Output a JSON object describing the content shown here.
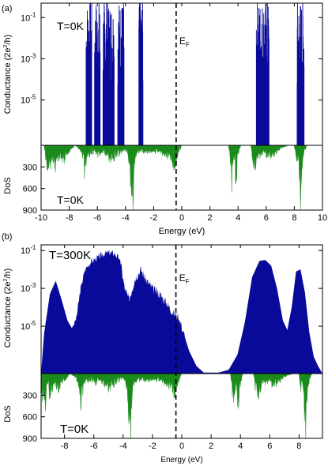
{
  "colors": {
    "conductance_fill": "#0a0a9a",
    "dos_fill": "#1a8a1a",
    "axis": "#000000",
    "fermi_line": "#000000"
  },
  "chart_data": [
    {
      "panel_label": "(a)",
      "type": "area",
      "conductance": {
        "ylabel": "Conductance (2e²/h)",
        "ylabel_main": "Conductance (2e",
        "ylabel_sup": "2",
        "ylabel_end": "/h)",
        "scale": "log",
        "yticks": [
          {
            "mant": "10",
            "exp": "-1",
            "value": 0.1
          },
          {
            "mant": "10",
            "exp": "-3",
            "value": 0.001
          },
          {
            "mant": "10",
            "exp": "-5",
            "value": 1e-05
          }
        ],
        "ylim_log10": [
          -7.2,
          -0.3
        ],
        "temperature": "T=0K",
        "fermi_label_main": "E",
        "fermi_label_sub": "F",
        "fermi_energy_ev": -0.4,
        "bands_ev": [
          [
            -6.8,
            -6.4
          ],
          [
            -6.2,
            -5.8
          ],
          [
            -5.6,
            -4.8
          ],
          [
            -4.55,
            -4.1
          ],
          [
            -3.05,
            -2.75
          ],
          [
            5.3,
            6.2
          ],
          [
            8.2,
            8.7
          ]
        ]
      },
      "dos": {
        "ylabel": "DoS",
        "yticks": [
          300,
          600,
          900
        ],
        "ylim": [
          0,
          900
        ],
        "temperature": "T=0K"
      },
      "xlabel": "Energy (eV)",
      "xlim": [
        -10,
        10
      ],
      "xticks": [
        "-10",
        "-8",
        "-6",
        "-4",
        "-2",
        "0",
        "2",
        "4",
        "6",
        "8",
        "10"
      ]
    },
    {
      "panel_label": "(b)",
      "type": "area",
      "conductance": {
        "ylabel_main": "Conductance (2e",
        "ylabel_sup": "2",
        "ylabel_end": "/h)",
        "scale": "log",
        "yticks": [
          {
            "mant": "10",
            "exp": "-1",
            "value": 0.1
          },
          {
            "mant": "10",
            "exp": "-3",
            "value": 0.001
          },
          {
            "mant": "10",
            "exp": "-5",
            "value": 1e-05
          }
        ],
        "ylim_log10": [
          -7.5,
          -0.7
        ],
        "temperature": "T=300K",
        "fermi_label_main": "E",
        "fermi_label_sub": "F",
        "fermi_energy_ev": -0.4,
        "profile_ev_log10": [
          [
            -9.6,
            -7.5
          ],
          [
            -9.4,
            -5.4
          ],
          [
            -9.0,
            -3.3
          ],
          [
            -8.6,
            -2.6
          ],
          [
            -8.2,
            -3.6
          ],
          [
            -7.8,
            -4.7
          ],
          [
            -7.5,
            -5.1
          ],
          [
            -7.2,
            -4.6
          ],
          [
            -6.9,
            -3.0
          ],
          [
            -6.6,
            -2.0
          ],
          [
            -6.2,
            -1.6
          ],
          [
            -5.8,
            -1.4
          ],
          [
            -5.4,
            -1.2
          ],
          [
            -5.0,
            -1.1
          ],
          [
            -4.6,
            -1.15
          ],
          [
            -4.2,
            -1.5
          ],
          [
            -3.9,
            -3.0
          ],
          [
            -3.6,
            -3.6
          ],
          [
            -3.2,
            -2.5
          ],
          [
            -2.8,
            -2.0
          ],
          [
            -2.4,
            -2.6
          ],
          [
            -2.0,
            -3.0
          ],
          [
            -1.5,
            -3.3
          ],
          [
            -1.0,
            -3.8
          ],
          [
            -0.6,
            -4.3
          ],
          [
            -0.2,
            -4.5
          ],
          [
            0.1,
            -5.3
          ],
          [
            0.5,
            -6.3
          ],
          [
            1.0,
            -7.1
          ],
          [
            1.5,
            -7.45
          ],
          [
            2.5,
            -7.45
          ],
          [
            3.2,
            -7.3
          ],
          [
            3.8,
            -6.5
          ],
          [
            4.3,
            -4.8
          ],
          [
            4.8,
            -2.4
          ],
          [
            5.3,
            -1.55
          ],
          [
            5.7,
            -1.5
          ],
          [
            6.1,
            -1.8
          ],
          [
            6.5,
            -3.0
          ],
          [
            6.9,
            -4.7
          ],
          [
            7.2,
            -5.2
          ],
          [
            7.5,
            -4.0
          ],
          [
            7.8,
            -2.1
          ],
          [
            8.1,
            -2.0
          ],
          [
            8.4,
            -3.2
          ],
          [
            8.7,
            -5.3
          ],
          [
            9.0,
            -6.6
          ],
          [
            9.3,
            -7.1
          ],
          [
            9.6,
            -7.5
          ]
        ]
      },
      "dos": {
        "ylabel": "DoS",
        "yticks": [
          300,
          600,
          900
        ],
        "ylim": [
          0,
          900
        ],
        "temperature": "T=0K"
      },
      "xlabel": "Energy (eV)",
      "xlim": [
        -9.6,
        9.6
      ],
      "xticks": [
        "-8",
        "-6",
        "-4",
        "-2",
        "0",
        "2",
        "4",
        "6",
        "8"
      ]
    }
  ],
  "dos_profile_ev": [
    [
      -9.8,
      0
    ],
    [
      -9.7,
      120
    ],
    [
      -9.55,
      320
    ],
    [
      -9.4,
      240
    ],
    [
      -9.3,
      450
    ],
    [
      -9.2,
      150
    ],
    [
      -9.0,
      280
    ],
    [
      -8.8,
      180
    ],
    [
      -8.6,
      150
    ],
    [
      -8.4,
      230
    ],
    [
      -8.2,
      120
    ],
    [
      -7.9,
      70
    ],
    [
      -7.6,
      0
    ],
    [
      -7.2,
      60
    ],
    [
      -7.0,
      160
    ],
    [
      -6.9,
      420
    ],
    [
      -6.7,
      180
    ],
    [
      -6.5,
      120
    ],
    [
      -6.2,
      90
    ],
    [
      -5.9,
      140
    ],
    [
      -5.6,
      80
    ],
    [
      -5.3,
      150
    ],
    [
      -5.0,
      200
    ],
    [
      -4.7,
      150
    ],
    [
      -4.4,
      120
    ],
    [
      -4.2,
      80
    ],
    [
      -4.0,
      60
    ],
    [
      -3.8,
      130
    ],
    [
      -3.6,
      560
    ],
    [
      -3.5,
      900
    ],
    [
      -3.4,
      350
    ],
    [
      -3.3,
      130
    ],
    [
      -3.0,
      80
    ],
    [
      -2.6,
      90
    ],
    [
      -2.2,
      100
    ],
    [
      -1.8,
      90
    ],
    [
      -1.4,
      110
    ],
    [
      -1.0,
      150
    ],
    [
      -0.7,
      200
    ],
    [
      -0.5,
      300
    ],
    [
      -0.4,
      200
    ],
    [
      -0.2,
      100
    ],
    [
      0.0,
      0
    ],
    [
      3.3,
      0
    ],
    [
      3.4,
      120
    ],
    [
      3.55,
      500
    ],
    [
      3.65,
      200
    ],
    [
      3.75,
      180
    ],
    [
      3.85,
      520
    ],
    [
      4.0,
      120
    ],
    [
      4.2,
      0
    ],
    [
      4.9,
      0
    ],
    [
      5.0,
      180
    ],
    [
      5.2,
      300
    ],
    [
      5.5,
      150
    ],
    [
      5.8,
      120
    ],
    [
      6.1,
      140
    ],
    [
      6.4,
      160
    ],
    [
      6.7,
      100
    ],
    [
      7.0,
      40
    ],
    [
      7.6,
      0
    ],
    [
      8.0,
      0
    ],
    [
      8.1,
      200
    ],
    [
      8.3,
      150
    ],
    [
      8.45,
      900
    ],
    [
      8.55,
      300
    ],
    [
      8.7,
      100
    ],
    [
      8.9,
      0
    ]
  ]
}
